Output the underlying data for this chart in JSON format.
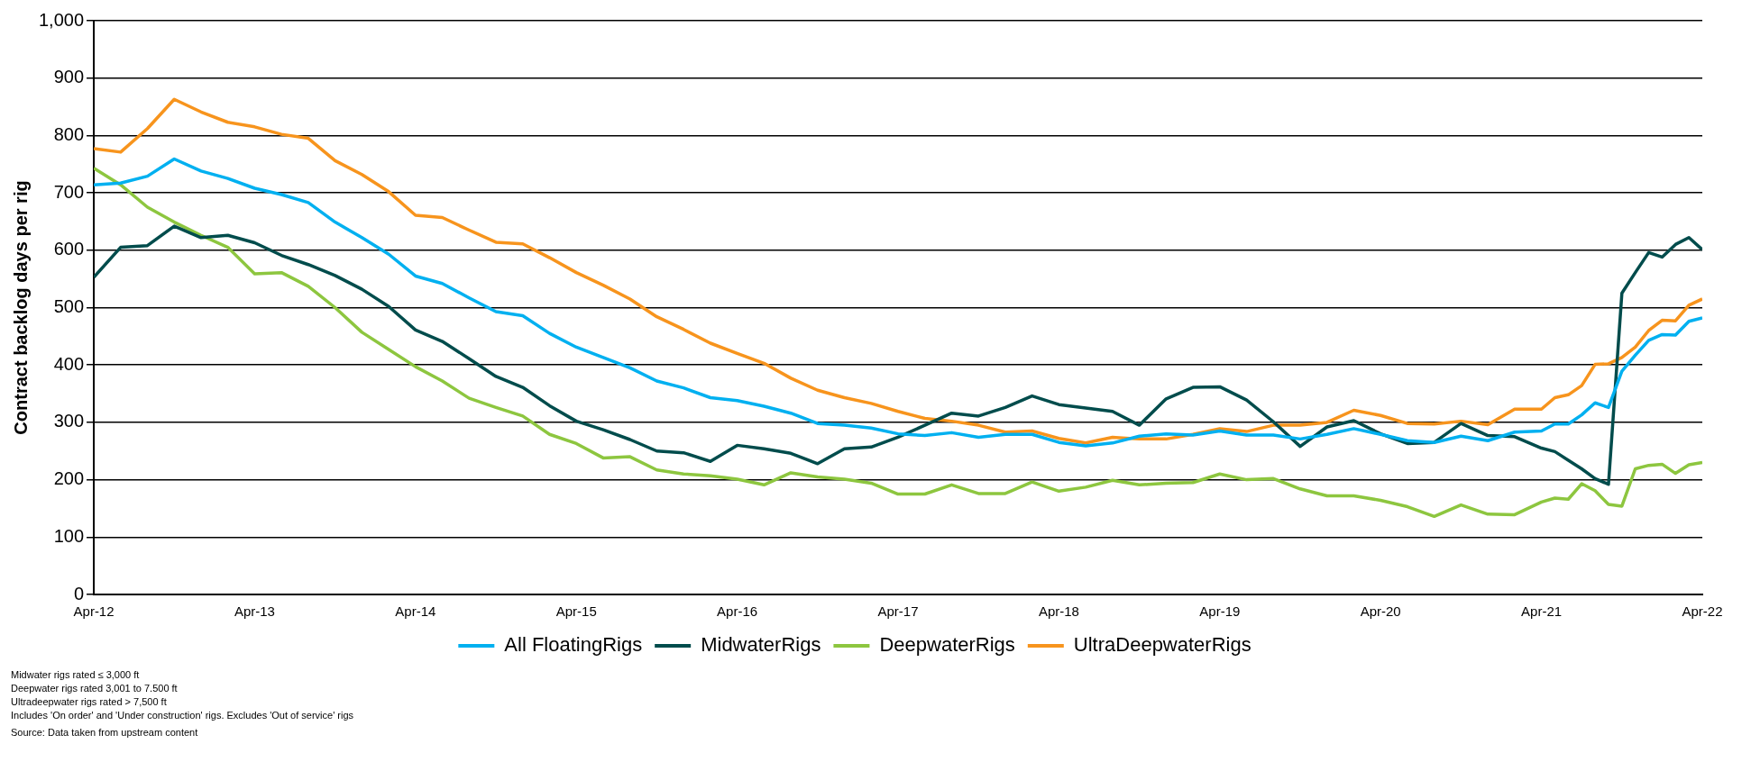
{
  "chart_data": {
    "type": "line",
    "ylabel": "Contract backlog days per rig",
    "x": [
      "2012-04",
      "2012-06",
      "2012-08",
      "2012-10",
      "2012-12",
      "2013-02",
      "2013-04",
      "2013-06",
      "2013-08",
      "2013-10",
      "2013-12",
      "2014-02",
      "2014-04",
      "2014-06",
      "2014-08",
      "2014-10",
      "2014-12",
      "2015-02",
      "2015-04",
      "2015-06",
      "2015-08",
      "2015-10",
      "2015-12",
      "2016-02",
      "2016-04",
      "2016-06",
      "2016-08",
      "2016-10",
      "2016-12",
      "2017-02",
      "2017-04",
      "2017-06",
      "2017-08",
      "2017-10",
      "2017-12",
      "2018-02",
      "2018-04",
      "2018-06",
      "2018-08",
      "2018-10",
      "2018-12",
      "2019-02",
      "2019-04",
      "2019-06",
      "2019-08",
      "2019-10",
      "2019-12",
      "2020-02",
      "2020-04",
      "2020-06",
      "2020-08",
      "2020-10",
      "2020-12",
      "2021-02",
      "2021-04",
      "2021-05",
      "2021-06",
      "2021-07",
      "2021-08",
      "2021-09",
      "2021-10",
      "2021-11",
      "2021-12",
      "2022-01",
      "2022-02",
      "2022-03",
      "2022-04"
    ],
    "series": [
      {
        "name": "All FloatingRigs",
        "color": "#00b0f0",
        "values": [
          714,
          717,
          729,
          759,
          738,
          725,
          708,
          697,
          683,
          649,
          622,
          593,
          555,
          542,
          517,
          493,
          486,
          455,
          431,
          413,
          395,
          372,
          360,
          343,
          338,
          328,
          316,
          298,
          295,
          290,
          280,
          277,
          282,
          274,
          279,
          279,
          265,
          259,
          264,
          276,
          280,
          278,
          285,
          278,
          278,
          271,
          279,
          289,
          279,
          268,
          265,
          276,
          268,
          283,
          285,
          297,
          297,
          313,
          334,
          326,
          389,
          417,
          443,
          453,
          452,
          476,
          482
        ]
      },
      {
        "name": "MidwaterRigs",
        "color": "#004c4c",
        "values": [
          553,
          605,
          608,
          642,
          622,
          626,
          613,
          591,
          575,
          556,
          532,
          502,
          461,
          441,
          411,
          380,
          361,
          329,
          302,
          287,
          270,
          250,
          247,
          232,
          260,
          254,
          246,
          228,
          254,
          257,
          274,
          295,
          316,
          311,
          326,
          346,
          331,
          325,
          319,
          295,
          341,
          361,
          362,
          339,
          301,
          258,
          292,
          303,
          280,
          263,
          265,
          298,
          277,
          275,
          255,
          249,
          234,
          219,
          202,
          192,
          525,
          561,
          596,
          588,
          610,
          622,
          601
        ]
      },
      {
        "name": "DeepwaterRigs",
        "color": "#8dc63f",
        "values": [
          743,
          714,
          675,
          649,
          626,
          605,
          559,
          561,
          537,
          500,
          457,
          427,
          397,
          372,
          342,
          326,
          311,
          279,
          263,
          238,
          240,
          217,
          210,
          207,
          201,
          191,
          212,
          205,
          201,
          194,
          175,
          175,
          191,
          176,
          176,
          196,
          180,
          187,
          199,
          191,
          194,
          195,
          210,
          200,
          202,
          184,
          172,
          172,
          164,
          153,
          136,
          156,
          140,
          139,
          161,
          168,
          166,
          193,
          181,
          157,
          154,
          219,
          225,
          227,
          211,
          226,
          230
        ]
      },
      {
        "name": "UltraDeepwaterRigs",
        "color": "#f7941d",
        "values": [
          777,
          771,
          812,
          863,
          841,
          823,
          815,
          802,
          795,
          756,
          732,
          702,
          661,
          657,
          635,
          614,
          611,
          587,
          561,
          539,
          515,
          484,
          462,
          438,
          420,
          403,
          377,
          356,
          343,
          333,
          319,
          307,
          302,
          295,
          283,
          285,
          272,
          264,
          274,
          271,
          271,
          279,
          289,
          284,
          295,
          295,
          300,
          321,
          312,
          298,
          297,
          302,
          296,
          323,
          323,
          343,
          348,
          364,
          401,
          402,
          413,
          431,
          460,
          478,
          477,
          504,
          515
        ]
      }
    ],
    "xlim": [
      "2012-04",
      "2022-04"
    ],
    "xticks": [
      {
        "value": "2012-04",
        "label": "Apr-12"
      },
      {
        "value": "2013-04",
        "label": "Apr-13"
      },
      {
        "value": "2014-04",
        "label": "Apr-14"
      },
      {
        "value": "2015-04",
        "label": "Apr-15"
      },
      {
        "value": "2016-04",
        "label": "Apr-16"
      },
      {
        "value": "2017-04",
        "label": "Apr-17"
      },
      {
        "value": "2018-04",
        "label": "Apr-18"
      },
      {
        "value": "2019-04",
        "label": "Apr-19"
      },
      {
        "value": "2020-04",
        "label": "Apr-20"
      },
      {
        "value": "2021-04",
        "label": "Apr-21"
      },
      {
        "value": "2022-04",
        "label": "Apr-22"
      }
    ],
    "ylim": [
      0,
      1000
    ],
    "yticks": [
      0,
      100,
      200,
      300,
      400,
      500,
      600,
      700,
      800,
      900,
      {
        "value": 1000,
        "label": "1,000"
      }
    ],
    "grid": "y",
    "legend": "bottom",
    "marker": "none",
    "line_style": "solid",
    "annotations": [
      "Midwater rigs rated ≤ 3,000 ft",
      "Deepwater rigs rated 3,001 to 7.500 ft",
      "Ultradeepwater rigs rated > 7,500 ft",
      "Includes 'On order' and 'Under construction' rigs. Excludes 'Out of service' rigs",
      "Source: Data taken from upstream content"
    ]
  }
}
